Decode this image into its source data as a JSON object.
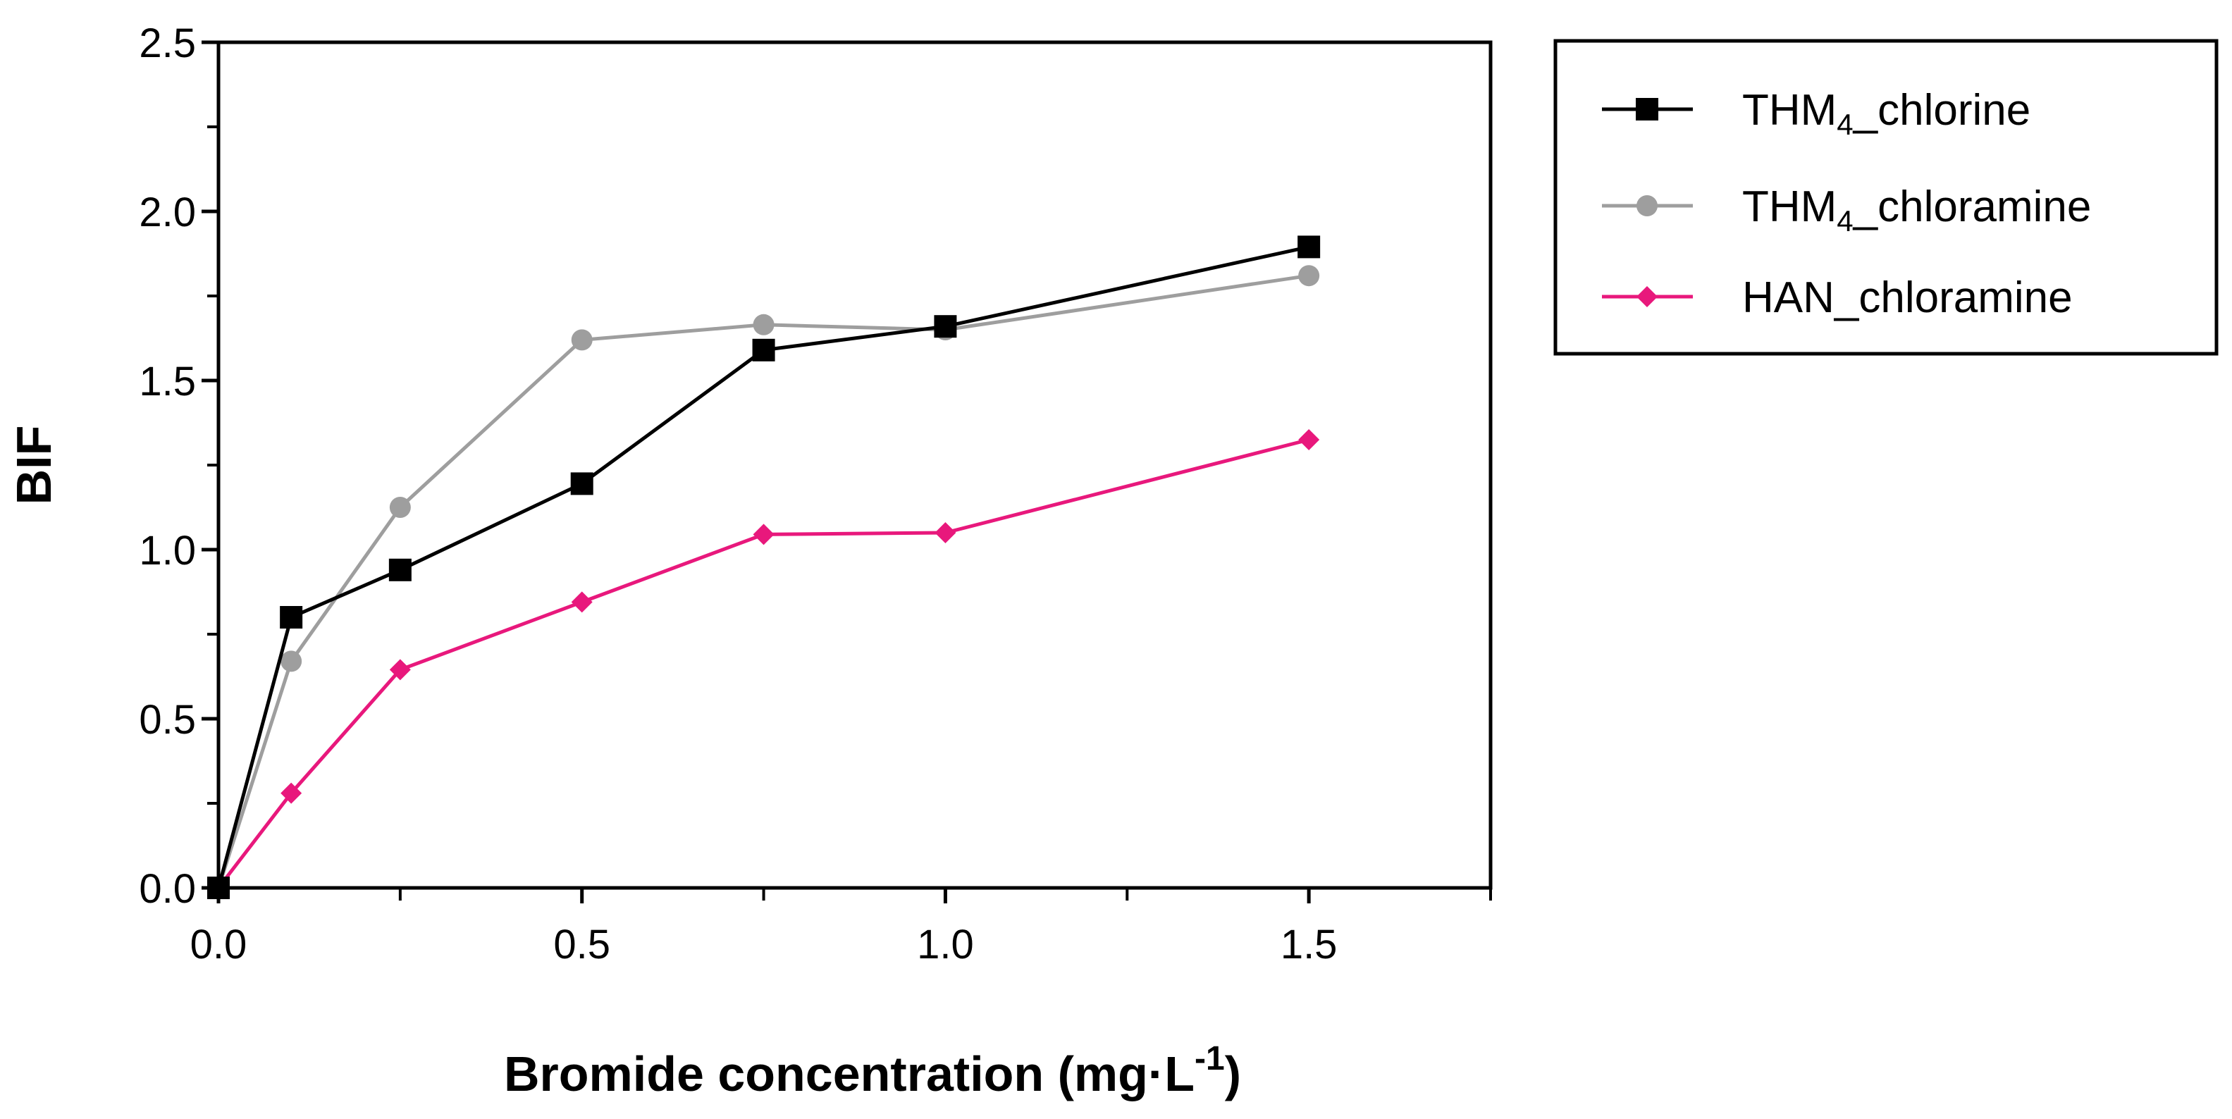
{
  "chart_data": {
    "type": "line",
    "title": "",
    "xlabel": {
      "main": "Bromide concentration (mg·L",
      "sup": "-1",
      "close": ")"
    },
    "ylabel": "BIF",
    "xlim": [
      0,
      1.75
    ],
    "ylim": [
      0,
      2.5
    ],
    "xticks": [
      0.0,
      0.5,
      1.0,
      1.5
    ],
    "xtick_labels": [
      "0.0",
      "0.5",
      "1.0",
      "1.5"
    ],
    "xminor": [
      0.25,
      0.75,
      1.25,
      1.75
    ],
    "yticks": [
      0.0,
      0.5,
      1.0,
      1.5,
      2.0,
      2.5
    ],
    "ytick_labels": [
      "0.0",
      "0.5",
      "1.0",
      "1.5",
      "2.0",
      "2.5"
    ],
    "yminor": [
      0.25,
      0.75,
      1.25,
      1.75,
      2.25
    ],
    "legend_position": "outside-top-right",
    "grid": false,
    "series": [
      {
        "name": "THM4_chlorine",
        "label_main": "THM",
        "label_sub": "4",
        "label_rest": "_chlorine",
        "color": "#000000",
        "marker": "square",
        "x": [
          0,
          0.1,
          0.25,
          0.5,
          0.75,
          1.0,
          1.5
        ],
        "y": [
          0.0,
          0.8,
          0.94,
          1.195,
          1.59,
          1.66,
          1.895
        ]
      },
      {
        "name": "THM4_chloramine",
        "label_main": "THM",
        "label_sub": "4",
        "label_rest": "_chloramine",
        "color": "#9e9e9e",
        "marker": "circle",
        "x": [
          0,
          0.1,
          0.25,
          0.5,
          0.75,
          1.0,
          1.5
        ],
        "y": [
          0.0,
          0.67,
          1.125,
          1.62,
          1.665,
          1.65,
          1.81
        ]
      },
      {
        "name": "HAN_chloramine",
        "label_main": "HAN_chloramine",
        "label_sub": "",
        "label_rest": "",
        "color": "#e8187c",
        "marker": "diamond",
        "x": [
          0,
          0.1,
          0.25,
          0.5,
          0.75,
          1.0,
          1.5
        ],
        "y": [
          0.0,
          0.28,
          0.645,
          0.845,
          1.045,
          1.05,
          1.325
        ]
      }
    ]
  }
}
